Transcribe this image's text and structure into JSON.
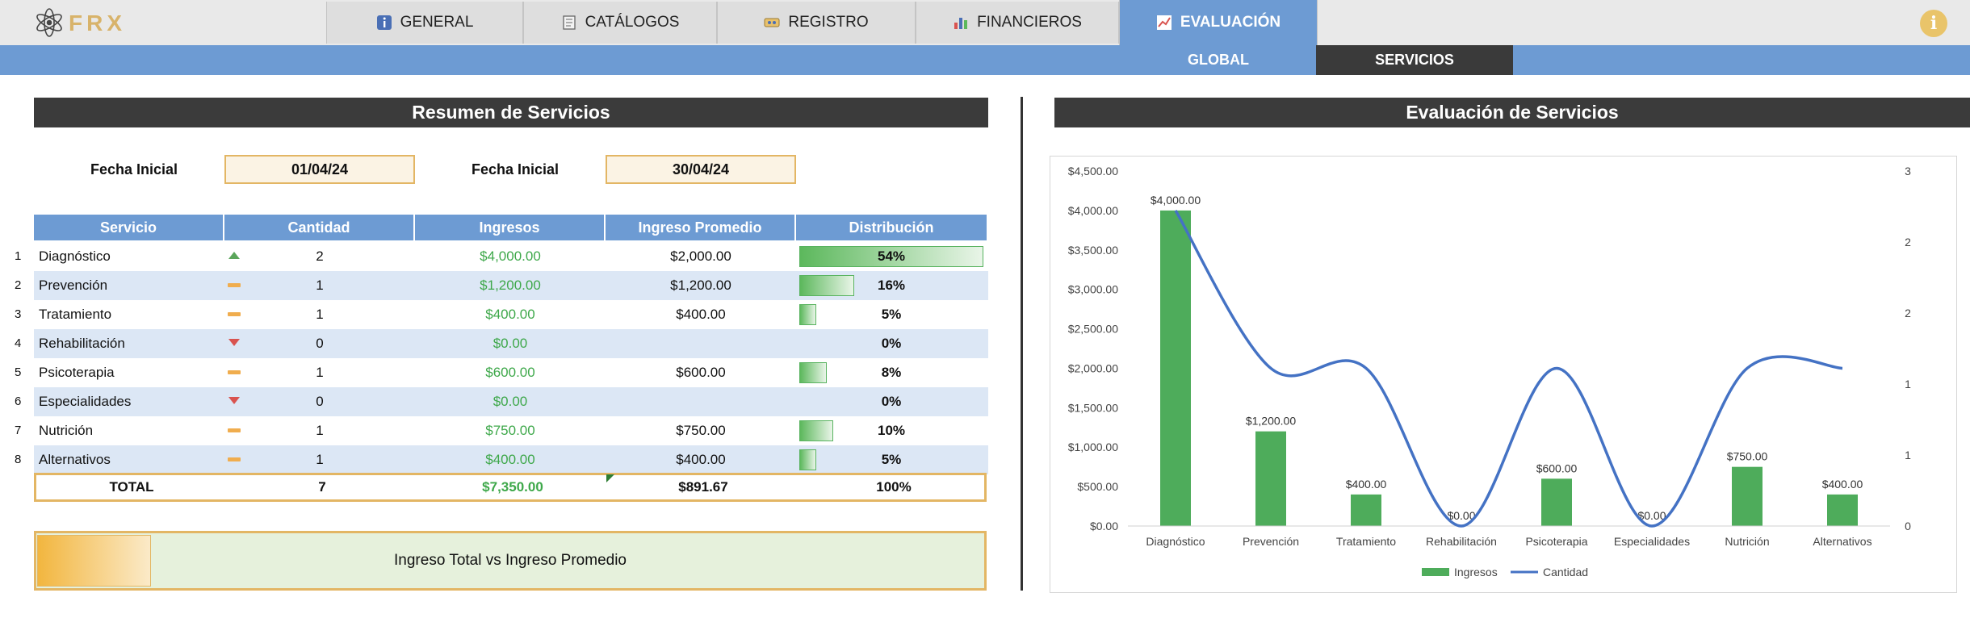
{
  "nav": {
    "tabs": [
      {
        "label": "GENERAL",
        "icon": "info-square-icon"
      },
      {
        "label": "CATÁLOGOS",
        "icon": "notebook-icon"
      },
      {
        "label": "REGISTRO",
        "icon": "ticket-icon"
      },
      {
        "label": "FINANCIEROS",
        "icon": "bar-chart-icon"
      },
      {
        "label": "EVALUACIÓN",
        "icon": "line-chart-icon"
      }
    ],
    "active_tab": "EVALUACIÓN",
    "subtabs": [
      {
        "label": "GLOBAL"
      },
      {
        "label": "SERVICIOS"
      }
    ],
    "active_subtab": "SERVICIOS",
    "info_symbol": "i"
  },
  "summary": {
    "title": "Resumen de Servicios",
    "date_start_label": "Fecha Inicial",
    "date_start": "01/04/24",
    "date_end_label": "Fecha Inicial",
    "date_end": "30/04/24",
    "columns": [
      "Servicio",
      "Cantidad",
      "Ingresos",
      "Ingreso Promedio",
      "Distribución"
    ],
    "rows": [
      {
        "n": "1",
        "servicio": "Diagnóstico",
        "trend": "up",
        "cantidad": "2",
        "ingresos": "$4,000.00",
        "promedio": "$2,000.00",
        "dist": "54%",
        "dist_value": 0.54
      },
      {
        "n": "2",
        "servicio": "Prevención",
        "trend": "flat",
        "cantidad": "1",
        "ingresos": "$1,200.00",
        "promedio": "$1,200.00",
        "dist": "16%",
        "dist_value": 0.16
      },
      {
        "n": "3",
        "servicio": "Tratamiento",
        "trend": "flat",
        "cantidad": "1",
        "ingresos": "$400.00",
        "promedio": "$400.00",
        "dist": "5%",
        "dist_value": 0.05
      },
      {
        "n": "4",
        "servicio": "Rehabilitación",
        "trend": "down",
        "cantidad": "0",
        "ingresos": "$0.00",
        "promedio": "",
        "dist": "0%",
        "dist_value": 0
      },
      {
        "n": "5",
        "servicio": "Psicoterapia",
        "trend": "flat",
        "cantidad": "1",
        "ingresos": "$600.00",
        "promedio": "$600.00",
        "dist": "8%",
        "dist_value": 0.08
      },
      {
        "n": "6",
        "servicio": "Especialidades",
        "trend": "down",
        "cantidad": "0",
        "ingresos": "$0.00",
        "promedio": "",
        "dist": "0%",
        "dist_value": 0
      },
      {
        "n": "7",
        "servicio": "Nutrición",
        "trend": "flat",
        "cantidad": "1",
        "ingresos": "$750.00",
        "promedio": "$750.00",
        "dist": "10%",
        "dist_value": 0.1
      },
      {
        "n": "8",
        "servicio": "Alternativos",
        "trend": "flat",
        "cantidad": "1",
        "ingresos": "$400.00",
        "promedio": "$400.00",
        "dist": "5%",
        "dist_value": 0.05
      }
    ],
    "total": {
      "label": "TOTAL",
      "cantidad": "7",
      "ingresos": "$7,350.00",
      "promedio": "$891.67",
      "dist": "100%"
    },
    "comparison_label": "Ingreso Total vs Ingreso Promedio",
    "comparison_value": 0.12
  },
  "evaluation_title": "Evaluación de Servicios",
  "chart_data": {
    "type": "bar",
    "title": "",
    "categories": [
      "Diagnóstico",
      "Prevención",
      "Tratamiento",
      "Rehabilitación",
      "Psicoterapia",
      "Especialidades",
      "Nutrición",
      "Alternativos"
    ],
    "series": [
      {
        "name": "Ingresos",
        "type": "bar",
        "axis": "left",
        "values": [
          4000,
          1200,
          400,
          0,
          600,
          0,
          750,
          400
        ],
        "labels": [
          "$4,000.00",
          "$1,200.00",
          "$400.00",
          "$0.00",
          "$600.00",
          "$0.00",
          "$750.00",
          "$400.00"
        ]
      },
      {
        "name": "Cantidad",
        "type": "line",
        "axis": "right",
        "values": [
          2,
          1,
          1,
          0,
          1,
          0,
          1,
          1
        ]
      }
    ],
    "ylim": [
      0,
      4500
    ],
    "y_ticks": [
      "$0.00",
      "$500.00",
      "$1,000.00",
      "$1,500.00",
      "$2,000.00",
      "$2,500.00",
      "$3,000.00",
      "$3,500.00",
      "$4,000.00",
      "$4,500.00"
    ],
    "y2lim": [
      0,
      2.25
    ],
    "y2_ticks": [
      "0",
      "1",
      "1",
      "2",
      "2",
      "3"
    ],
    "legend_position": "bottom",
    "colors": {
      "bar": "#4eac5b",
      "line": "#4472c4"
    }
  }
}
